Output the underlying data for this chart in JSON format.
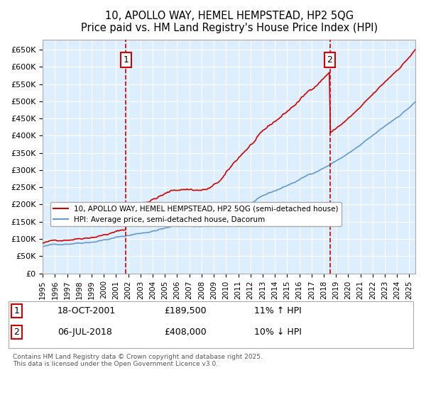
{
  "title": "10, APOLLO WAY, HEMEL HEMPSTEAD, HP2 5QG",
  "subtitle": "Price paid vs. HM Land Registry's House Price Index (HPI)",
  "ylabel_ticks": [
    "£0",
    "£50K",
    "£100K",
    "£150K",
    "£200K",
    "£250K",
    "£300K",
    "£350K",
    "£400K",
    "£450K",
    "£500K",
    "£550K",
    "£600K",
    "£650K"
  ],
  "ylim": [
    0,
    680000
  ],
  "xlim_start": 1995.0,
  "xlim_end": 2025.5,
  "marker1_x": 2001.8,
  "marker1_label": "1",
  "marker1_date": "18-OCT-2001",
  "marker1_price": "£189,500",
  "marker1_hpi": "11% ↑ HPI",
  "marker2_x": 2018.5,
  "marker2_label": "2",
  "marker2_date": "06-JUL-2018",
  "marker2_price": "£408,000",
  "marker2_hpi": "10% ↓ HPI",
  "legend_line1": "10, APOLLO WAY, HEMEL HEMPSTEAD, HP2 5QG (semi-detached house)",
  "legend_line2": "HPI: Average price, semi-detached house, Dacorum",
  "footer": "Contains HM Land Registry data © Crown copyright and database right 2025.\nThis data is licensed under the Open Government Licence v3.0.",
  "line_color_red": "#cc0000",
  "line_color_blue": "#6699cc",
  "background_color": "#ddeeff",
  "plot_bg": "#ddeeff",
  "grid_color": "#ffffff",
  "marker_box_color": "#cc0000"
}
